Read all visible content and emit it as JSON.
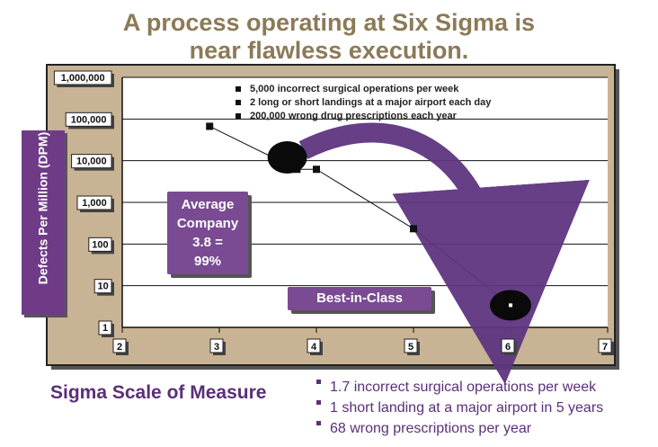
{
  "title": {
    "line1": "A process operating at Six Sigma is",
    "line2": "near flawless execution."
  },
  "colors": {
    "background_panel": "#c8b394",
    "accent_purple": "#7a4b93",
    "title_color": "#8b7a58"
  },
  "chart_data": {
    "type": "scatter",
    "ylabel": "Defects Per Million (DPM)",
    "xlabel": "Sigma Scale of Measure",
    "y_scale": "log",
    "ylim": [
      1,
      1000000
    ],
    "xlim": [
      2,
      7
    ],
    "y_ticks": [
      "1,000,000",
      "100,000",
      "10,000",
      "1,000",
      "100",
      "10",
      "1"
    ],
    "y_tick_values": [
      1000000,
      100000,
      10000,
      1000,
      100,
      10,
      1
    ],
    "x_ticks": [
      "2",
      "3",
      "4",
      "5",
      "6",
      "7"
    ],
    "x_tick_values": [
      2,
      3,
      4,
      5,
      6,
      7
    ],
    "grid": true,
    "series": [
      {
        "values": [
          {
            "x": 2.9,
            "y": 66800
          },
          {
            "x": 3.8,
            "y": 6210
          },
          {
            "x": 4.0,
            "y": 6210
          },
          {
            "x": 5.0,
            "y": 233
          },
          {
            "x": 6.0,
            "y": 3.4
          }
        ]
      }
    ],
    "highlight_points": [
      {
        "x": 3.7,
        "y": 12000
      },
      {
        "x": 6.0,
        "y": 3.4
      }
    ],
    "annotations": {
      "average_company": "Average Company 3.8 = 99%",
      "best_in_class": "Best-in-Class"
    }
  },
  "callouts": {
    "average_lines": [
      "Average",
      "Company",
      "3.8 =",
      "99%"
    ],
    "best_in_class": "Best-in-Class"
  },
  "legend_top": [
    "5,000 incorrect surgical operations per week",
    "2 long or short landings at a major airport each day",
    "200,000 wrong drug prescriptions each year"
  ],
  "bottom": {
    "scale_title": "Sigma Scale of Measure",
    "items": [
      "1.7 incorrect surgical operations per week",
      "1 short landing at a major airport in 5 years",
      "68 wrong prescriptions per year"
    ]
  }
}
